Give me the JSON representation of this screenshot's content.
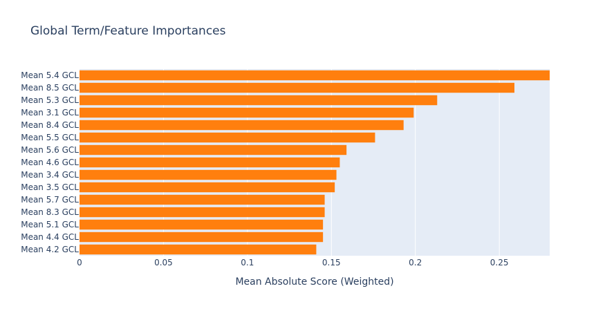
{
  "chart_data": {
    "type": "bar",
    "orientation": "horizontal",
    "title": "Global Term/Feature Importances",
    "xlabel": "Mean Absolute Score (Weighted)",
    "ylabel": "",
    "xlim": [
      0,
      0.28
    ],
    "x_ticks": [
      "0",
      "0.05",
      "0.1",
      "0.15",
      "0.2",
      "0.25"
    ],
    "x_tick_values": [
      0,
      0.05,
      0.1,
      0.15,
      0.2,
      0.25
    ],
    "grid": true,
    "legend": "none",
    "categories": [
      "Mean 5.4 GCL",
      "Mean 8.5 GCL",
      "Mean 5.3 GCL",
      "Mean 3.1 GCL",
      "Mean 8.4 GCL",
      "Mean 5.5 GCL",
      "Mean 5.6 GCL",
      "Mean 4.6 GCL",
      "Mean 3.4 GCL",
      "Mean 3.5 GCL",
      "Mean 5.7 GCL",
      "Mean 8.3 GCL",
      "Mean 5.1 GCL",
      "Mean 4.4 GCL",
      "Mean 4.2 GCL"
    ],
    "values": [
      0.28,
      0.259,
      0.213,
      0.199,
      0.193,
      0.176,
      0.159,
      0.155,
      0.153,
      0.152,
      0.146,
      0.146,
      0.145,
      0.145,
      0.141
    ],
    "colors": {
      "bar": "#ff7f0e",
      "plot_bg": "#e5ecf6",
      "grid": "#ffffff",
      "text": "#2a3f5f"
    }
  }
}
